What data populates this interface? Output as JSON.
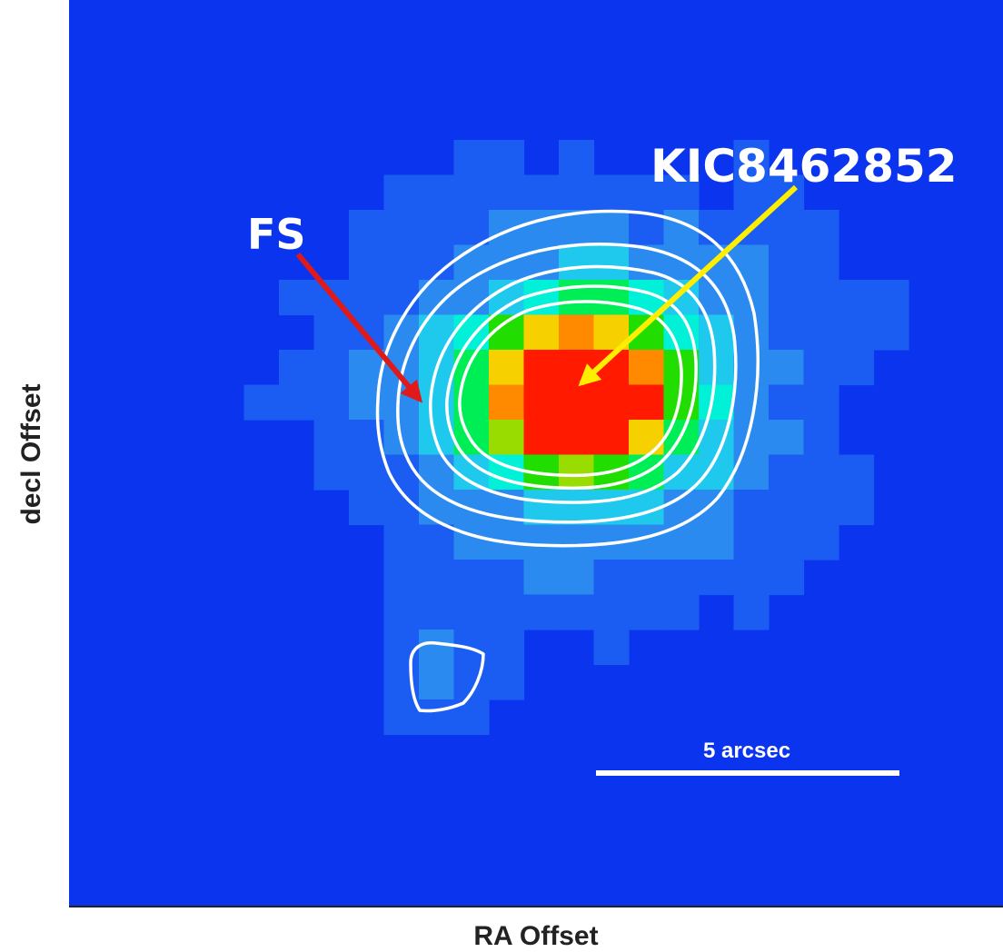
{
  "image": {
    "colormap": [
      "#0a34ee",
      "#1b5cf2",
      "#2b8af0",
      "#1fc9ee",
      "#00f0d8",
      "#00ee55",
      "#22dd00",
      "#99dd00",
      "#f7d000",
      "#ff8a00",
      "#ff1a00"
    ],
    "background_color": "#0a34ee",
    "contour_color": "#ffffff"
  },
  "axes": {
    "x_label": "RA Offset",
    "y_label": "decl Offset"
  },
  "annotations": {
    "target_label": "KIC8462852",
    "target_arrow_color": "#ffee00",
    "companion_label": "FS",
    "companion_arrow_color": "#e01a1a"
  },
  "scale_bar": {
    "label": "5 arcsec",
    "color": "#ffffff"
  }
}
